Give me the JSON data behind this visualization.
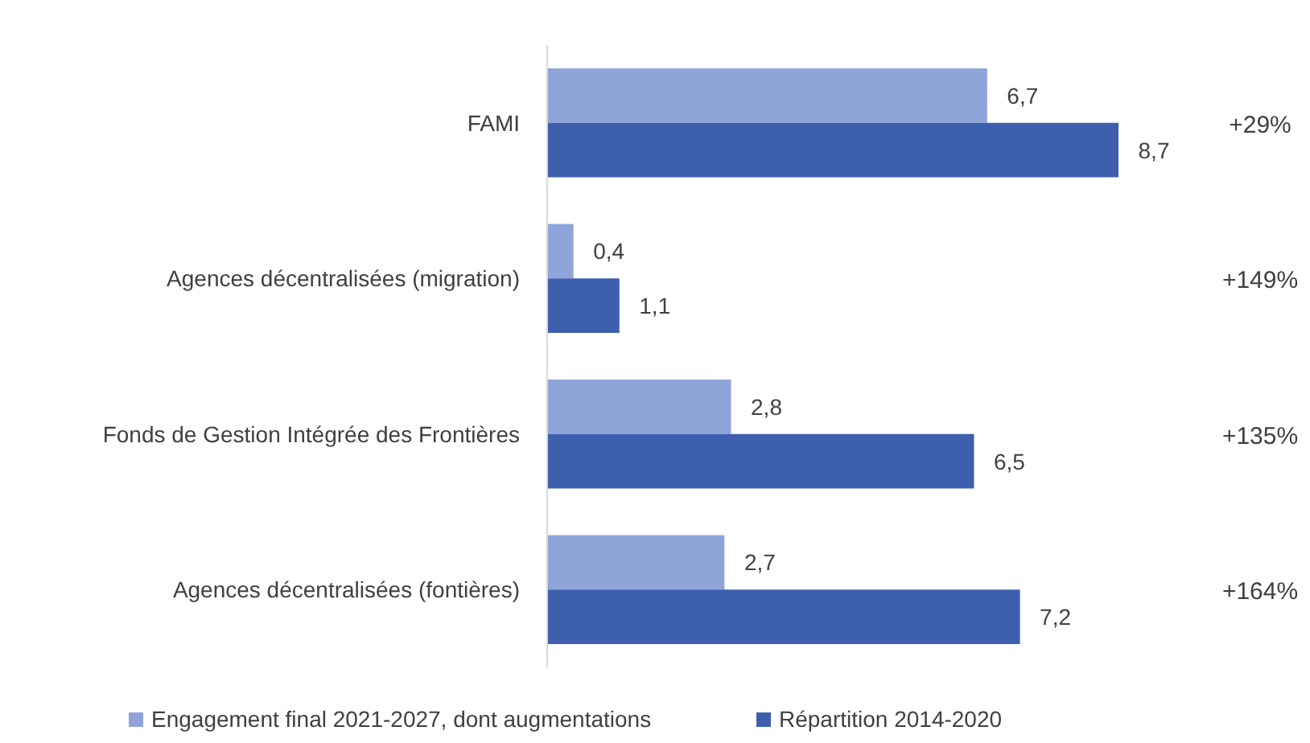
{
  "chart_data": {
    "type": "bar",
    "orientation": "horizontal",
    "categories": [
      "FAMI",
      "Agences décentralisées (migration)",
      "Fonds de Gestion Intégrée des Frontières",
      "Agences décentralisées (fontières)"
    ],
    "series": [
      {
        "name": "Engagement final 2021-2027, dont augmentations",
        "color": "#8fa5d9",
        "values": [
          6.7,
          0.4,
          2.8,
          2.7
        ],
        "value_labels": [
          "6,7",
          "0,4",
          "2,8",
          "2,7"
        ]
      },
      {
        "name": "Répartition 2014-2020",
        "color": "#3d5fae",
        "values": [
          8.7,
          1.1,
          6.5,
          7.2
        ],
        "value_labels": [
          "8,7",
          "1,1",
          "6,5",
          "7,2"
        ]
      }
    ],
    "annotations": [
      "+29%",
      "+149%",
      "+135%",
      "+164%"
    ],
    "data_labels": false,
    "legend": "bottom"
  }
}
